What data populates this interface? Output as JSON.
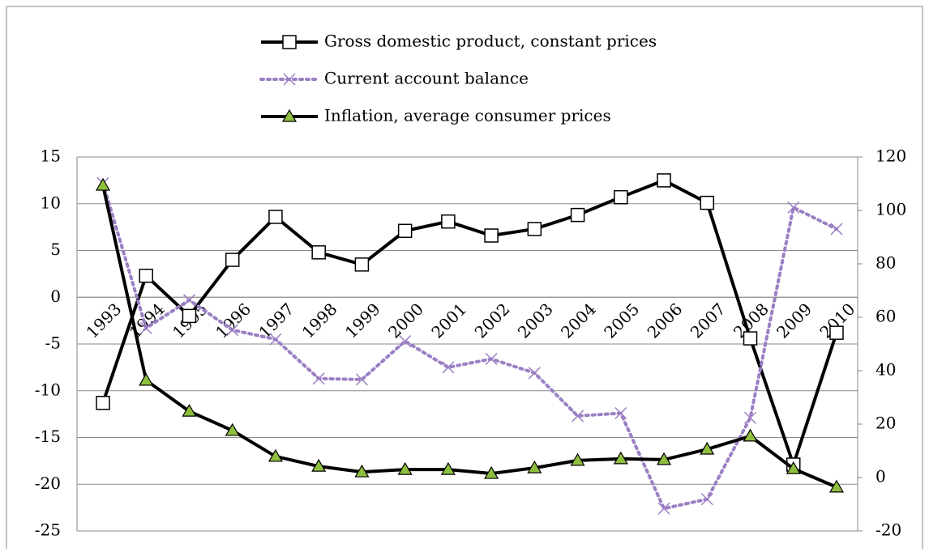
{
  "chart_data": {
    "type": "line",
    "categories": [
      "1993",
      "1994",
      "1995",
      "1996",
      "1997",
      "1998",
      "1999",
      "2000",
      "2001",
      "2002",
      "2003",
      "2004",
      "2005",
      "2006",
      "2007",
      "2008",
      "2009",
      "2010"
    ],
    "series": [
      {
        "name": "Gross domestic product, constant prices",
        "color": "#000000",
        "marker": "square",
        "dash": "solid",
        "values": [
          -11.3,
          2.3,
          -2.0,
          4.0,
          8.6,
          4.8,
          3.5,
          7.1,
          8.1,
          6.6,
          7.3,
          8.8,
          10.7,
          12.5,
          10.1,
          -4.4,
          -17.9,
          -3.8
        ]
      },
      {
        "name": "Current account balance",
        "color": "#9b7fc4",
        "marker": "x",
        "dash": "dotted",
        "values": [
          12.2,
          -3.3,
          -0.3,
          -3.5,
          -4.5,
          -8.7,
          -8.8,
          -4.7,
          -7.5,
          -6.6,
          -8.1,
          -12.7,
          -12.4,
          -22.6,
          -21.6,
          -12.9,
          9.6,
          7.3
        ]
      },
      {
        "name": "Inflation, average consumer prices",
        "color": "#000000",
        "marker": "triangle",
        "marker_fill": "#8fbf3f",
        "dash": "solid",
        "axis": "y2",
        "values": [
          109.4,
          36.4,
          24.8,
          17.6,
          7.9,
          4.2,
          2.1,
          3.0,
          3.0,
          1.5,
          3.6,
          6.4,
          7.0,
          6.7,
          10.6,
          15.5,
          3.3,
          -3.6
        ]
      }
    ],
    "ylim": [
      -25,
      15
    ],
    "yticks": [
      -25,
      -20,
      -15,
      -10,
      -5,
      0,
      5,
      10,
      15
    ],
    "y2lim": [
      -20,
      120
    ],
    "y2ticks": [
      -20,
      0,
      20,
      40,
      60,
      80,
      100,
      120
    ],
    "grid": true,
    "legend": "top"
  }
}
